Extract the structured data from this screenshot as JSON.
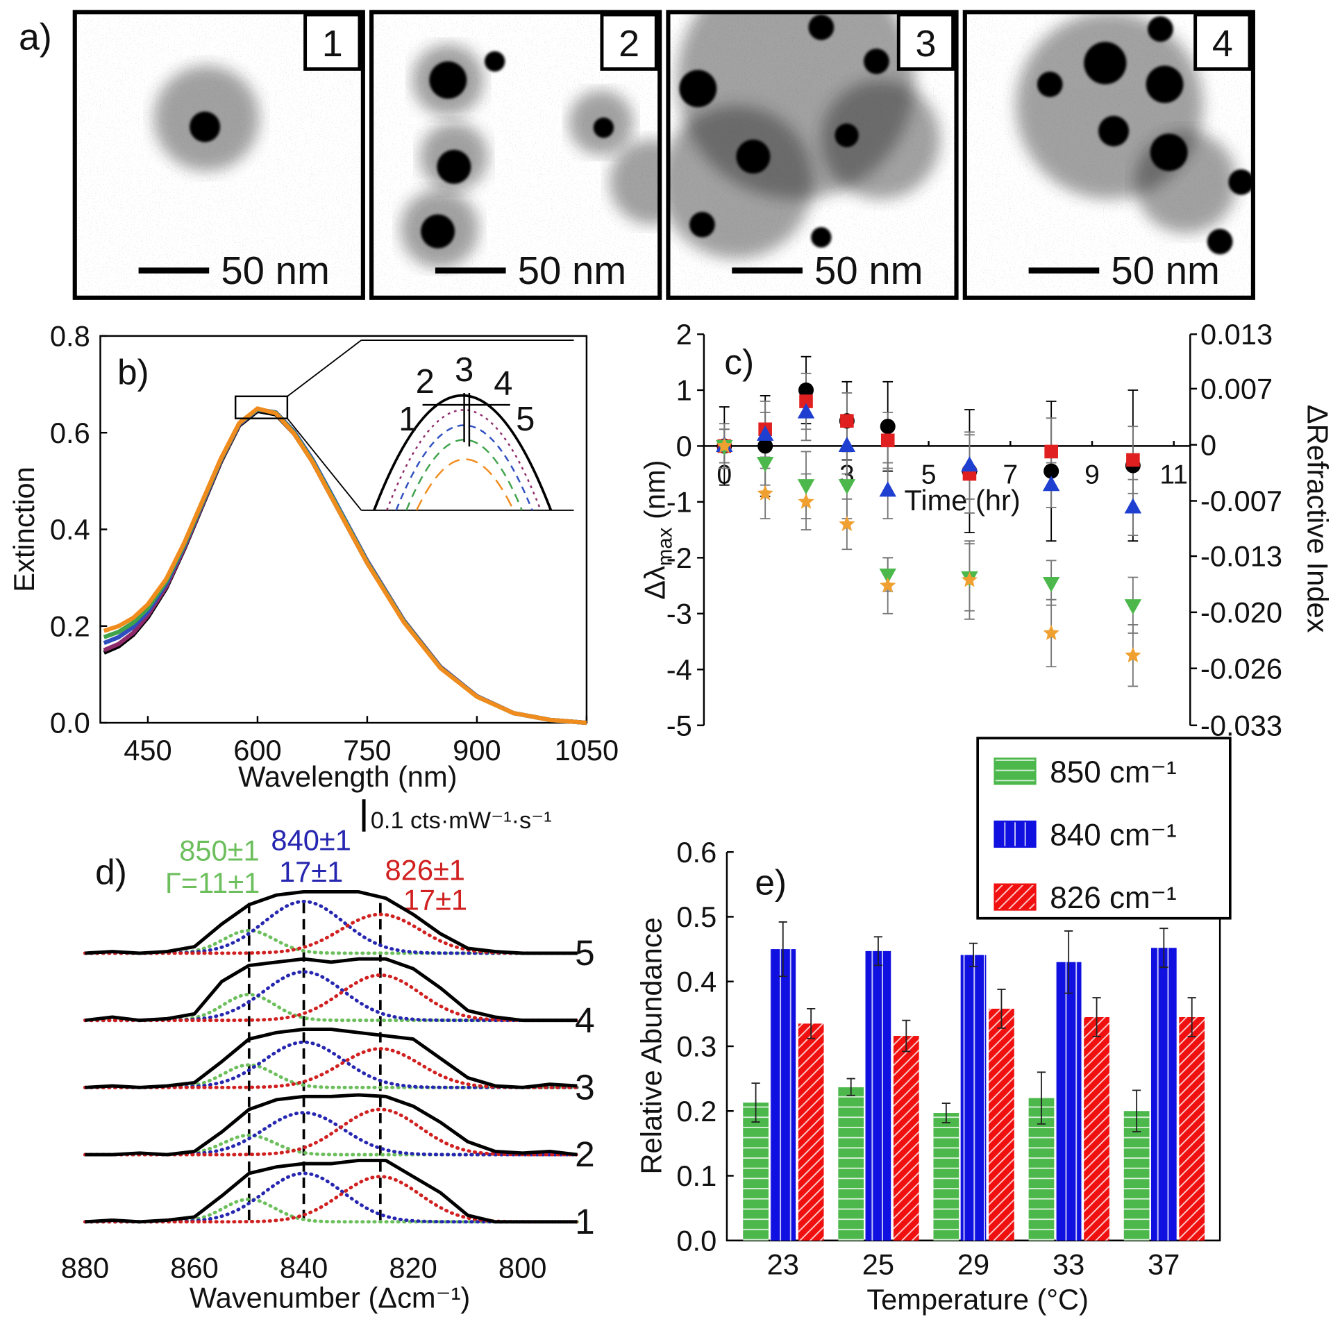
{
  "panel_a": {
    "label": "a)",
    "images": [
      {
        "number": "1",
        "scale_bar": "50 nm"
      },
      {
        "number": "2",
        "scale_bar": "50 nm"
      },
      {
        "number": "3",
        "scale_bar": "50 nm"
      },
      {
        "number": "4",
        "scale_bar": "50 nm"
      }
    ]
  },
  "chart_data": [
    {
      "type": "line",
      "panel_label": "b)",
      "xlabel": "Wavelength (nm)",
      "ylabel": "Extinction",
      "x": [
        390,
        410,
        430,
        450,
        475,
        500,
        525,
        550,
        575,
        600,
        625,
        650,
        675,
        700,
        750,
        800,
        850,
        900,
        950,
        1000,
        1050
      ],
      "xlim": [
        385,
        1050
      ],
      "xticks": [
        450,
        600,
        750,
        900,
        1050
      ],
      "ylim": [
        0,
        0.8
      ],
      "yticks": [
        {
          "value": 0,
          "label": "0.0"
        },
        0.2,
        0.4,
        0.6,
        0.8
      ],
      "series": [
        {
          "color": "#000000",
          "values": [
            0.145,
            0.158,
            0.182,
            0.218,
            0.278,
            0.36,
            0.45,
            0.54,
            0.615,
            0.645,
            0.638,
            0.598,
            0.54,
            0.47,
            0.33,
            0.21,
            0.115,
            0.055,
            0.02,
            0.006,
            0.0
          ]
        },
        {
          "color": "#8e2a6a",
          "values": [
            0.15,
            0.163,
            0.186,
            0.222,
            0.281,
            0.362,
            0.452,
            0.542,
            0.617,
            0.648,
            0.642,
            0.602,
            0.545,
            0.475,
            0.335,
            0.212,
            0.116,
            0.055,
            0.02,
            0.006,
            0.0
          ]
        },
        {
          "color": "#2f4fc0",
          "values": [
            0.165,
            0.177,
            0.198,
            0.23,
            0.287,
            0.366,
            0.455,
            0.544,
            0.618,
            0.648,
            0.642,
            0.602,
            0.545,
            0.476,
            0.334,
            0.211,
            0.115,
            0.055,
            0.02,
            0.006,
            0.0
          ]
        },
        {
          "color": "#3fa34a",
          "values": [
            0.177,
            0.188,
            0.207,
            0.237,
            0.292,
            0.369,
            0.457,
            0.545,
            0.619,
            0.649,
            0.641,
            0.6,
            0.542,
            0.473,
            0.332,
            0.21,
            0.114,
            0.054,
            0.02,
            0.006,
            0.0
          ]
        },
        {
          "color": "#f08c1e",
          "values": [
            0.19,
            0.2,
            0.217,
            0.245,
            0.297,
            0.373,
            0.46,
            0.547,
            0.62,
            0.65,
            0.64,
            0.598,
            0.54,
            0.47,
            0.33,
            0.208,
            0.113,
            0.054,
            0.02,
            0.006,
            0.0
          ]
        }
      ],
      "inset_labels": [
        "1",
        "2",
        "3",
        "4",
        "5"
      ]
    },
    {
      "type": "scatter",
      "panel_label": "c)",
      "xlabel": "Time (hr)",
      "ylabel": {
        "symbol": "Δλ",
        "subscript": "max",
        "unit": " (nm)"
      },
      "y2label": "ΔRefractive Index",
      "x": [
        0,
        1,
        2,
        3,
        4,
        6,
        8,
        10
      ],
      "xlim": [
        -0.5,
        11.4
      ],
      "xticks": [
        0,
        3,
        5,
        7,
        9,
        11
      ],
      "ylim": [
        -5,
        2
      ],
      "yticks": [
        -5,
        -4,
        -3,
        -2,
        -1,
        0,
        1,
        2
      ],
      "y2lim": [
        -0.033,
        0.013
      ],
      "y2ticks": [
        -0.033,
        {
          "value": -0.0263,
          "label": "-0.026"
        },
        {
          "value": -0.0197,
          "label": "-0.020"
        },
        {
          "value": -0.0131,
          "label": "-0.013"
        },
        {
          "value": -0.0066,
          "label": "-0.007"
        },
        0,
        {
          "value": 0.0066,
          "label": "0.007"
        },
        0.013
      ],
      "series": [
        {
          "color": "#000000",
          "marker": "circle",
          "values": [
            0,
            0,
            1.0,
            0.45,
            0.35,
            -0.45,
            -0.45,
            -0.35
          ],
          "errors": [
            0.7,
            0.9,
            0.6,
            0.7,
            0.8,
            1.1,
            1.25,
            1.35
          ]
        },
        {
          "color": "#e02020",
          "marker": "square",
          "values": [
            0,
            0.3,
            0.8,
            0.45,
            0.1,
            -0.5,
            -0.1,
            -0.25
          ],
          "errors": [
            0.4,
            0.5,
            0.5,
            0.5,
            0.5,
            0.7,
            0.6,
            0.6
          ]
        },
        {
          "color": "#1f3fd0",
          "marker": "triangle-up",
          "values": [
            0,
            0.2,
            0.6,
            0,
            -0.8,
            -0.35,
            -0.7,
            -1.1
          ],
          "errors": [
            0.3,
            0.4,
            0.5,
            0.5,
            0.5,
            0.6,
            0.4,
            0.5
          ]
        },
        {
          "color": "#4cb84c",
          "marker": "triangle-down",
          "values": [
            0,
            -0.3,
            -0.7,
            -0.7,
            -2.3,
            -2.35,
            -2.45,
            -2.85
          ],
          "errors": [
            0.3,
            0.4,
            0.6,
            0.6,
            0.3,
            0.6,
            0.4,
            0.5
          ]
        },
        {
          "color": "#f0a030",
          "marker": "star",
          "values": [
            0,
            -0.85,
            -1.0,
            -1.4,
            -2.5,
            -2.4,
            -3.35,
            -3.75
          ],
          "errors": [
            0.3,
            0.45,
            0.5,
            0.45,
            0.5,
            0.7,
            0.6,
            0.55
          ]
        }
      ],
      "zero_line": true
    },
    {
      "type": "spectra",
      "panel_label": "d)",
      "xlabel": "Wavenumber (Δcm⁻¹)",
      "x": [
        880,
        875,
        870,
        865,
        860,
        855,
        850,
        845,
        840,
        835,
        830,
        825,
        820,
        815,
        810,
        805,
        800,
        795,
        790
      ],
      "xlim": [
        880,
        790
      ],
      "xticks": [
        880,
        860,
        840,
        820,
        800
      ],
      "scale_bar": {
        "value": 0.1,
        "label": "0.1 cts·mW⁻¹·s⁻¹"
      },
      "components": [
        {
          "center": 850,
          "width": 11,
          "color": "#6cbf5c",
          "label": "850±1",
          "width_label": "Γ=11±1"
        },
        {
          "center": 840,
          "width": 17,
          "color": "#2626b0",
          "label": "840±1",
          "width_label": "17±1"
        },
        {
          "center": 826,
          "width": 17,
          "color": "#d02020",
          "label": "826±1",
          "width_label": "17±1"
        }
      ],
      "series": [
        {
          "name": "1",
          "color": "#000000",
          "values": [
            0,
            0.005,
            0,
            0.005,
            0.015,
            0.08,
            0.15,
            0.17,
            0.18,
            0.18,
            0.19,
            0.19,
            0.14,
            0.09,
            0.02,
            0,
            0,
            0,
            0
          ],
          "component_amplitudes": [
            0.07,
            0.15,
            0.14
          ]
        },
        {
          "name": "2",
          "color": "#000000",
          "values": [
            0,
            0,
            0.005,
            0,
            0.01,
            0.07,
            0.14,
            0.17,
            0.18,
            0.18,
            0.185,
            0.18,
            0.15,
            0.1,
            0.04,
            0.01,
            0.005,
            0.01,
            0
          ],
          "component_amplitudes": [
            0.06,
            0.13,
            0.14
          ]
        },
        {
          "name": "3",
          "color": "#000000",
          "values": [
            0,
            0.005,
            0,
            0.005,
            0.015,
            0.08,
            0.15,
            0.17,
            0.18,
            0.18,
            0.17,
            0.16,
            0.15,
            0.09,
            0.03,
            0.005,
            0,
            0.01,
            0.005
          ],
          "component_amplitudes": [
            0.07,
            0.14,
            0.12
          ]
        },
        {
          "name": "4",
          "color": "#000000",
          "values": [
            0,
            0.01,
            0,
            0.005,
            0.02,
            0.12,
            0.17,
            0.18,
            0.19,
            0.18,
            0.19,
            0.19,
            0.16,
            0.1,
            0.03,
            0.01,
            0,
            0,
            0
          ],
          "component_amplitudes": [
            0.08,
            0.15,
            0.14
          ]
        },
        {
          "name": "5",
          "color": "#000000",
          "values": [
            0,
            0.005,
            0,
            0.005,
            0.02,
            0.09,
            0.15,
            0.18,
            0.19,
            0.19,
            0.19,
            0.17,
            0.12,
            0.06,
            0.015,
            0.005,
            0,
            0,
            0
          ],
          "component_amplitudes": [
            0.07,
            0.16,
            0.12
          ]
        }
      ]
    },
    {
      "type": "bar",
      "panel_label": "e)",
      "xlabel": "Temperature (°C)",
      "ylabel": "Relative Abundance",
      "categories": [
        "23",
        "25",
        "29",
        "33",
        "37"
      ],
      "ylim": [
        0,
        0.6
      ],
      "yticks": [
        {
          "value": 0,
          "label": "0.0"
        },
        0.1,
        0.2,
        0.3,
        0.4,
        0.5,
        0.6
      ],
      "series": [
        {
          "name": "850 cm⁻¹",
          "color": "#4cb84c",
          "hatch": "horizontal",
          "values": [
            0.213,
            0.237,
            0.197,
            0.22,
            0.2
          ],
          "errors": [
            0.03,
            0.013,
            0.015,
            0.04,
            0.032
          ]
        },
        {
          "name": "840 cm⁻¹",
          "color": "#1010e0",
          "hatch": "vertical",
          "values": [
            0.45,
            0.447,
            0.441,
            0.43,
            0.452
          ],
          "errors": [
            0.042,
            0.022,
            0.018,
            0.048,
            0.03
          ]
        },
        {
          "name": "826 cm⁻¹",
          "color": "#f01010",
          "hatch": "diagonal",
          "values": [
            0.335,
            0.316,
            0.358,
            0.345,
            0.345
          ],
          "errors": [
            0.023,
            0.024,
            0.03,
            0.03,
            0.03
          ]
        }
      ],
      "legend": "upper right"
    }
  ]
}
